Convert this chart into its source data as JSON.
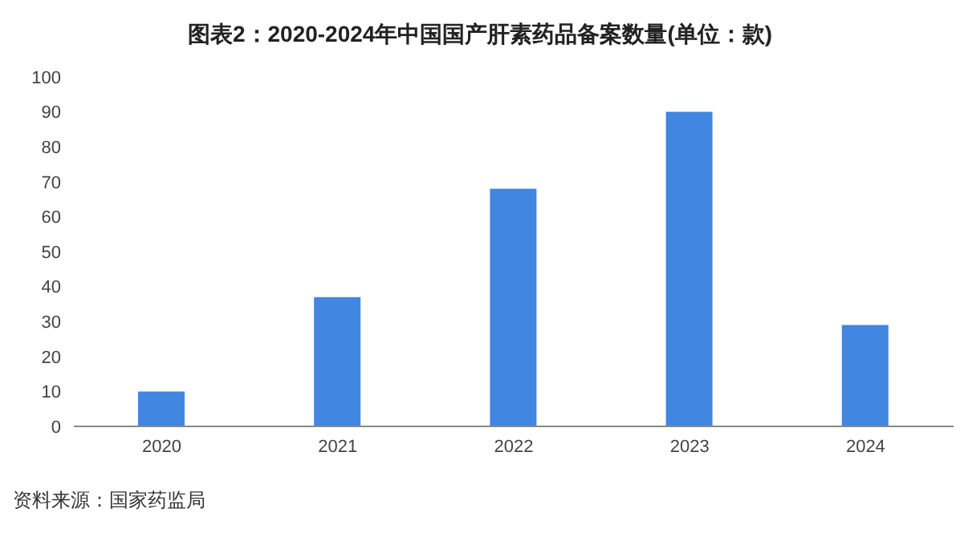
{
  "chart_data": {
    "type": "bar",
    "title": "图表2：2020-2024年中国国产肝素药品备案数量(单位：款)",
    "categories": [
      "2020",
      "2021",
      "2022",
      "2023",
      "2024"
    ],
    "values": [
      10,
      37,
      68,
      90,
      29
    ],
    "color": "#4186e0",
    "ylim": [
      0,
      100
    ],
    "yticks": [
      0,
      10,
      20,
      30,
      40,
      50,
      60,
      70,
      80,
      90,
      100
    ],
    "grid": false,
    "annotations": [
      "资料来源：国家药监局"
    ]
  }
}
